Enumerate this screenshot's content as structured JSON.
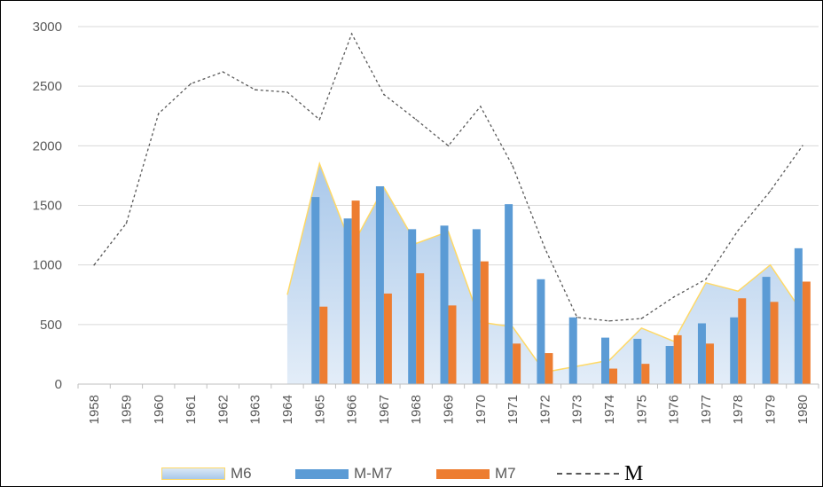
{
  "chart_data": {
    "type": "bar",
    "categories": [
      "1958",
      "1959",
      "1960",
      "1961",
      "1962",
      "1963",
      "1964",
      "1965",
      "1966",
      "1967",
      "1968",
      "1969",
      "1970",
      "1971",
      "1972",
      "1973",
      "1974",
      "1975",
      "1976",
      "1977",
      "1978",
      "1979",
      "1980"
    ],
    "ylim": [
      0,
      3000
    ],
    "yticks": [
      "0",
      "500",
      "1000",
      "1500",
      "2000",
      "2500",
      "3000"
    ],
    "grid": true,
    "legend_position": "bottom",
    "series": [
      {
        "name": "M6",
        "kind": "area",
        "color": "#bdd7ee",
        "edge_color": "#ffd966",
        "values": [
          null,
          null,
          null,
          null,
          null,
          null,
          750,
          1850,
          1150,
          1650,
          1180,
          1280,
          520,
          480,
          100,
          150,
          200,
          470,
          360,
          850,
          780,
          1000,
          600
        ]
      },
      {
        "name": "M-M7",
        "kind": "bar",
        "color": "#5b9bd5",
        "values": [
          null,
          null,
          null,
          null,
          null,
          null,
          null,
          1570,
          1390,
          1660,
          1300,
          1330,
          1300,
          1510,
          880,
          560,
          390,
          380,
          320,
          510,
          560,
          900,
          1140
        ]
      },
      {
        "name": "M7",
        "kind": "bar",
        "color": "#ed7d31",
        "values": [
          null,
          null,
          null,
          null,
          null,
          null,
          null,
          650,
          1540,
          760,
          930,
          660,
          1030,
          340,
          260,
          null,
          130,
          170,
          410,
          340,
          720,
          690,
          860
        ]
      },
      {
        "name": "M",
        "kind": "dashed-line",
        "color": "#595959",
        "values": [
          1000,
          1350,
          2270,
          2520,
          2620,
          2470,
          2450,
          2220,
          2940,
          2430,
          2220,
          2000,
          2330,
          1830,
          1140,
          560,
          530,
          550,
          730,
          880,
          1290,
          1620,
          2000
        ]
      }
    ]
  }
}
